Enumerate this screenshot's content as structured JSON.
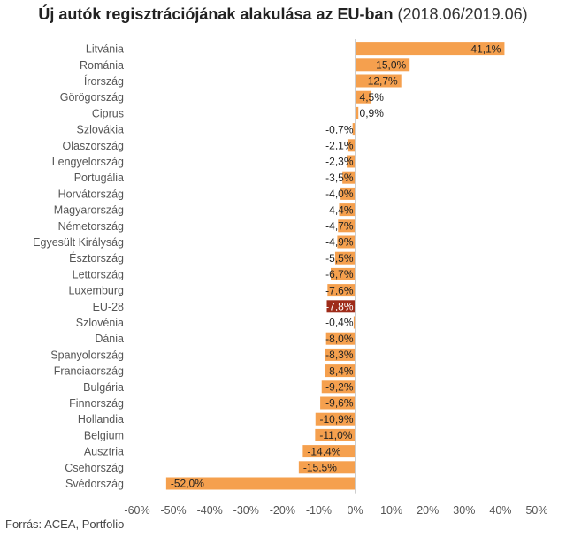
{
  "title": {
    "main": "Új autók regisztrációjának alakulása az EU-ban",
    "sub": "(2018.06/2019.06)"
  },
  "source": "Forrás: ACEA, Portfolio",
  "colors": {
    "bar": "#f5a04e",
    "highlight": "#9e2b19",
    "axis": "#cccccc"
  },
  "chart_data": {
    "type": "bar",
    "orientation": "horizontal",
    "categories": [
      "Litvánia",
      "Románia",
      "Írország",
      "Görögország",
      "Ciprus",
      "Szlovákia",
      "Olaszország",
      "Lengyelország",
      "Portugália",
      "Horvátország",
      "Magyarország",
      "Németország",
      "Egyesült Királyság",
      "Észtország",
      "Lettország",
      "Luxemburg",
      "EU-28",
      "Szlovénia",
      "Dánia",
      "Spanyolország",
      "Franciaország",
      "Bulgária",
      "Finnország",
      "Hollandia",
      "Belgium",
      "Ausztria",
      "Csehország",
      "Svédország"
    ],
    "values": [
      41.1,
      15.0,
      12.7,
      4.5,
      0.9,
      -0.7,
      -2.1,
      -2.3,
      -3.5,
      -4.0,
      -4.4,
      -4.7,
      -4.9,
      -5.5,
      -6.7,
      -7.6,
      -7.8,
      -0.4,
      -8.0,
      -8.3,
      -8.4,
      -9.2,
      -9.6,
      -10.9,
      -11.0,
      -14.4,
      -15.5,
      -52.0
    ],
    "value_labels": [
      "41,1%",
      "15,0%",
      "12,7%",
      "4,5%",
      "0,9%",
      "-0,7%",
      "-2,1%",
      "-2,3%",
      "-3,5%",
      "-4,0%",
      "-4,4%",
      "-4,7%",
      "-4,9%",
      "-5,5%",
      "-6,7%",
      "-7,6%",
      "-7,8%",
      "-0,4%",
      "-8,0%",
      "-8,3%",
      "-8,4%",
      "-9,2%",
      "-9,6%",
      "-10,9%",
      "-11,0%",
      "-14,4%",
      "-15,5%",
      "-52,0%"
    ],
    "highlight": "EU-28",
    "xlim": [
      -60,
      50
    ],
    "xticks": [
      -60,
      -50,
      -40,
      -30,
      -20,
      -10,
      0,
      10,
      20,
      30,
      40,
      50
    ],
    "xtick_labels": [
      "-60%",
      "-50%",
      "-40%",
      "-30%",
      "-20%",
      "-10%",
      "0%",
      "10%",
      "20%",
      "30%",
      "40%",
      "50%"
    ],
    "grid": false,
    "legend": "none"
  }
}
